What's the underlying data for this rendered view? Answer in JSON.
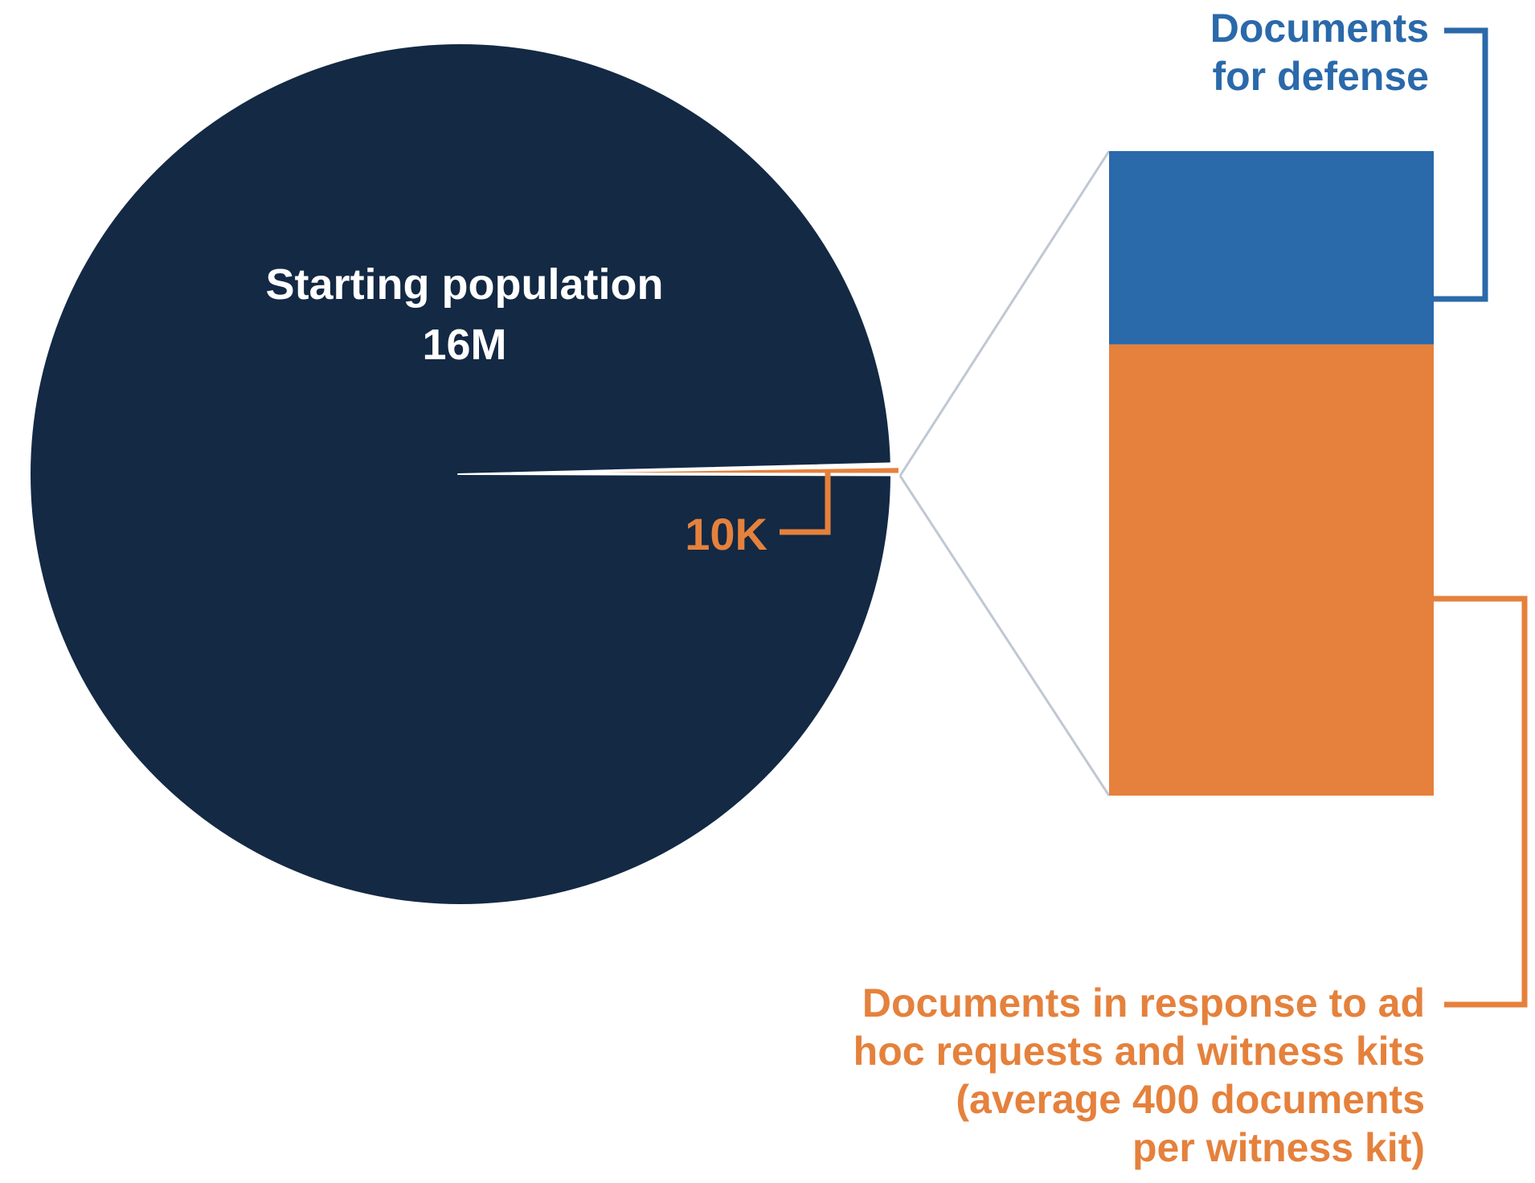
{
  "chart_data": {
    "type": "pie",
    "pie": {
      "total_label": "Starting population",
      "total_value_label": "16M",
      "slice_label": "10K",
      "total": 16000000,
      "slice_value": 10000
    },
    "breakdown": {
      "type": "stacked-bar",
      "segments": [
        {
          "name": "Documents for defense",
          "label_lines": [
            "Documents",
            "for defense"
          ],
          "share": 0.3,
          "color": "#2a69aa"
        },
        {
          "name": "Documents in response to ad hoc requests and witness kits (average 400 documents per witness kit)",
          "label_lines": [
            "Documents in response to ad",
            "hoc requests and witness kits",
            "(average 400 documents",
            "per witness kit)"
          ],
          "share": 0.7,
          "color": "#e5813c"
        }
      ]
    },
    "colors": {
      "pie": "#132944",
      "slice": "#e5813c",
      "connector": "#c0c8d2",
      "text_light": "#ffffff"
    }
  }
}
